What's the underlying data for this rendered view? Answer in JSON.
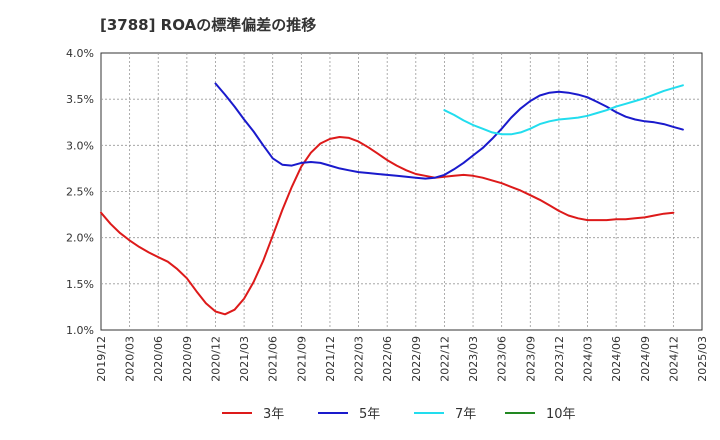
{
  "chart_data": {
    "type": "line",
    "title": "[3788]  ROAの標準偏差の推移",
    "xlabel": "",
    "ylabel": "",
    "ylim": [
      1.0,
      4.0
    ],
    "yticks": [
      "1.0%",
      "1.5%",
      "2.0%",
      "2.5%",
      "3.0%",
      "3.5%",
      "4.0%"
    ],
    "xticks": [
      "2019/12",
      "2020/03",
      "2020/06",
      "2020/09",
      "2020/12",
      "2021/03",
      "2021/06",
      "2021/09",
      "2021/12",
      "2022/03",
      "2022/06",
      "2022/09",
      "2022/12",
      "2023/03",
      "2023/06",
      "2023/09",
      "2023/12",
      "2024/03",
      "2024/06",
      "2024/09",
      "2024/12",
      "2025/03"
    ],
    "grid": true,
    "legend": "bottom",
    "series": [
      {
        "name": "3年",
        "color": "#dd1a1a",
        "points": [
          [
            "2019/12",
            2.27
          ],
          [
            "2020/01",
            2.15
          ],
          [
            "2020/02",
            2.05
          ],
          [
            "2020/03",
            1.97
          ],
          [
            "2020/04",
            1.9
          ],
          [
            "2020/05",
            1.84
          ],
          [
            "2020/06",
            1.79
          ],
          [
            "2020/07",
            1.74
          ],
          [
            "2020/08",
            1.66
          ],
          [
            "2020/09",
            1.56
          ],
          [
            "2020/10",
            1.42
          ],
          [
            "2020/11",
            1.29
          ],
          [
            "2020/12",
            1.2
          ],
          [
            "2021/01",
            1.17
          ],
          [
            "2021/02",
            1.22
          ],
          [
            "2021/03",
            1.34
          ],
          [
            "2021/04",
            1.52
          ],
          [
            "2021/05",
            1.75
          ],
          [
            "2021/06",
            2.02
          ],
          [
            "2021/07",
            2.3
          ],
          [
            "2021/08",
            2.55
          ],
          [
            "2021/09",
            2.77
          ],
          [
            "2021/10",
            2.92
          ],
          [
            "2021/11",
            3.02
          ],
          [
            "2021/12",
            3.07
          ],
          [
            "2022/01",
            3.09
          ],
          [
            "2022/02",
            3.08
          ],
          [
            "2022/03",
            3.04
          ],
          [
            "2022/04",
            2.98
          ],
          [
            "2022/05",
            2.91
          ],
          [
            "2022/06",
            2.84
          ],
          [
            "2022/07",
            2.78
          ],
          [
            "2022/08",
            2.73
          ],
          [
            "2022/09",
            2.69
          ],
          [
            "2022/10",
            2.67
          ],
          [
            "2022/11",
            2.65
          ],
          [
            "2022/12",
            2.66
          ],
          [
            "2023/01",
            2.67
          ],
          [
            "2023/02",
            2.68
          ],
          [
            "2023/03",
            2.67
          ],
          [
            "2023/04",
            2.65
          ],
          [
            "2023/05",
            2.62
          ],
          [
            "2023/06",
            2.59
          ],
          [
            "2023/07",
            2.55
          ],
          [
            "2023/08",
            2.51
          ],
          [
            "2023/09",
            2.46
          ],
          [
            "2023/10",
            2.41
          ],
          [
            "2023/11",
            2.35
          ],
          [
            "2023/12",
            2.29
          ],
          [
            "2024/01",
            2.24
          ],
          [
            "2024/02",
            2.21
          ],
          [
            "2024/03",
            2.19
          ],
          [
            "2024/04",
            2.19
          ],
          [
            "2024/05",
            2.19
          ],
          [
            "2024/06",
            2.2
          ],
          [
            "2024/07",
            2.2
          ],
          [
            "2024/08",
            2.21
          ],
          [
            "2024/09",
            2.22
          ],
          [
            "2024/10",
            2.24
          ],
          [
            "2024/11",
            2.26
          ],
          [
            "2024/12",
            2.27
          ]
        ]
      },
      {
        "name": "5年",
        "color": "#1a1acc",
        "points": [
          [
            "2020/12",
            3.67
          ],
          [
            "2021/01",
            3.55
          ],
          [
            "2021/02",
            3.42
          ],
          [
            "2021/03",
            3.28
          ],
          [
            "2021/04",
            3.15
          ],
          [
            "2021/05",
            3.0
          ],
          [
            "2021/06",
            2.86
          ],
          [
            "2021/07",
            2.79
          ],
          [
            "2021/08",
            2.78
          ],
          [
            "2021/09",
            2.81
          ],
          [
            "2021/10",
            2.82
          ],
          [
            "2021/11",
            2.81
          ],
          [
            "2021/12",
            2.78
          ],
          [
            "2022/01",
            2.75
          ],
          [
            "2022/02",
            2.73
          ],
          [
            "2022/03",
            2.71
          ],
          [
            "2022/04",
            2.7
          ],
          [
            "2022/05",
            2.69
          ],
          [
            "2022/06",
            2.68
          ],
          [
            "2022/07",
            2.67
          ],
          [
            "2022/08",
            2.66
          ],
          [
            "2022/09",
            2.65
          ],
          [
            "2022/10",
            2.64
          ],
          [
            "2022/11",
            2.65
          ],
          [
            "2022/12",
            2.68
          ],
          [
            "2023/01",
            2.74
          ],
          [
            "2023/02",
            2.81
          ],
          [
            "2023/03",
            2.89
          ],
          [
            "2023/04",
            2.97
          ],
          [
            "2023/05",
            3.07
          ],
          [
            "2023/06",
            3.18
          ],
          [
            "2023/07",
            3.3
          ],
          [
            "2023/08",
            3.4
          ],
          [
            "2023/09",
            3.48
          ],
          [
            "2023/10",
            3.54
          ],
          [
            "2023/11",
            3.57
          ],
          [
            "2023/12",
            3.58
          ],
          [
            "2024/01",
            3.57
          ],
          [
            "2024/02",
            3.55
          ],
          [
            "2024/03",
            3.52
          ],
          [
            "2024/04",
            3.47
          ],
          [
            "2024/05",
            3.42
          ],
          [
            "2024/06",
            3.36
          ],
          [
            "2024/07",
            3.31
          ],
          [
            "2024/08",
            3.28
          ],
          [
            "2024/09",
            3.26
          ],
          [
            "2024/10",
            3.25
          ],
          [
            "2024/11",
            3.23
          ],
          [
            "2024/12",
            3.2
          ],
          [
            "2025/01",
            3.17
          ]
        ]
      },
      {
        "name": "7年",
        "color": "#22ddee",
        "points": [
          [
            "2022/12",
            3.38
          ],
          [
            "2023/01",
            3.33
          ],
          [
            "2023/02",
            3.27
          ],
          [
            "2023/03",
            3.22
          ],
          [
            "2023/04",
            3.18
          ],
          [
            "2023/05",
            3.14
          ],
          [
            "2023/06",
            3.12
          ],
          [
            "2023/07",
            3.12
          ],
          [
            "2023/08",
            3.14
          ],
          [
            "2023/09",
            3.18
          ],
          [
            "2023/10",
            3.23
          ],
          [
            "2023/11",
            3.26
          ],
          [
            "2023/12",
            3.28
          ],
          [
            "2024/01",
            3.29
          ],
          [
            "2024/02",
            3.3
          ],
          [
            "2024/03",
            3.32
          ],
          [
            "2024/04",
            3.35
          ],
          [
            "2024/05",
            3.38
          ],
          [
            "2024/06",
            3.42
          ],
          [
            "2024/07",
            3.45
          ],
          [
            "2024/08",
            3.48
          ],
          [
            "2024/09",
            3.51
          ],
          [
            "2024/10",
            3.55
          ],
          [
            "2024/11",
            3.59
          ],
          [
            "2024/12",
            3.62
          ],
          [
            "2025/01",
            3.65
          ]
        ]
      },
      {
        "name": "10年",
        "color": "#228822",
        "points": []
      }
    ]
  }
}
